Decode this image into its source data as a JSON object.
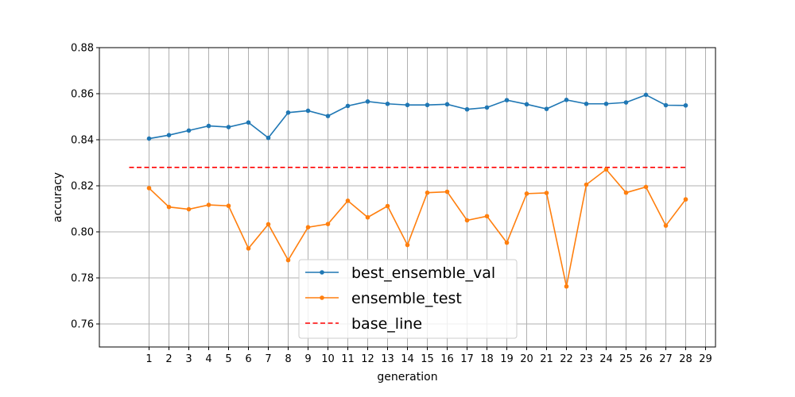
{
  "chart_data": {
    "type": "line",
    "xlabel": "generation",
    "ylabel": "accuracy",
    "xlim": [
      -1.5,
      29.5
    ],
    "ylim": [
      0.75,
      0.88
    ],
    "x_ticks": [
      1,
      2,
      3,
      4,
      5,
      6,
      7,
      8,
      9,
      10,
      11,
      12,
      13,
      14,
      15,
      16,
      17,
      18,
      19,
      20,
      21,
      22,
      23,
      24,
      25,
      26,
      27,
      28,
      29
    ],
    "y_ticks": [
      "0.76",
      "0.78",
      "0.80",
      "0.82",
      "0.84",
      "0.86",
      "0.88"
    ],
    "grid": true,
    "legend_position": "lower-center",
    "x": [
      1,
      2,
      3,
      4,
      5,
      6,
      7,
      8,
      9,
      10,
      11,
      12,
      13,
      14,
      15,
      16,
      17,
      18,
      19,
      20,
      21,
      22,
      23,
      24,
      25,
      26,
      27,
      28
    ],
    "series": [
      {
        "name": "best_ensemble_val",
        "color": "#1f77b4",
        "marker": "dot",
        "style": "solid",
        "values": [
          0.8405,
          0.842,
          0.844,
          0.846,
          0.8455,
          0.8475,
          0.8408,
          0.8518,
          0.8526,
          0.8503,
          0.8547,
          0.8566,
          0.8556,
          0.8551,
          0.8551,
          0.8554,
          0.8532,
          0.854,
          0.8572,
          0.8554,
          0.8534,
          0.8573,
          0.8556,
          0.8556,
          0.8562,
          0.8595,
          0.855,
          0.8549
        ]
      },
      {
        "name": "ensemble_test",
        "color": "#ff7f0e",
        "marker": "dot",
        "style": "solid",
        "values": [
          0.819,
          0.8108,
          0.8098,
          0.8117,
          0.8113,
          0.7928,
          0.8033,
          0.7877,
          0.802,
          0.8034,
          0.8135,
          0.8063,
          0.8112,
          0.7943,
          0.817,
          0.8174,
          0.805,
          0.8068,
          0.7953,
          0.8166,
          0.8169,
          0.7763,
          0.8205,
          0.8271,
          0.817,
          0.8195,
          0.8027,
          0.8141
        ]
      },
      {
        "name": "base_line",
        "color": "#ff0000",
        "marker": "none",
        "style": "dashed",
        "x_range": [
          0,
          28
        ],
        "value": 0.828
      }
    ]
  }
}
